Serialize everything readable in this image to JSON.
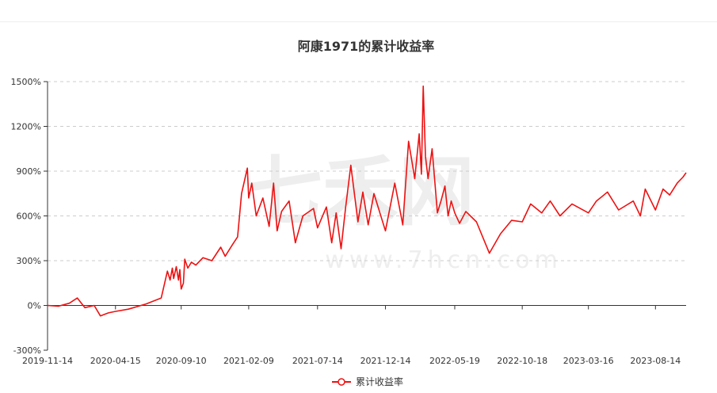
{
  "chart_data": {
    "type": "line",
    "title": "阿康1971的累计收益率",
    "xlabel": "",
    "ylabel": "",
    "x_start": "2019-11-14",
    "x_end": "2023-10-22",
    "x_tick_labels": [
      "2019-11-14",
      "2020-04-15",
      "2020-09-10",
      "2021-02-09",
      "2021-07-14",
      "2021-12-14",
      "2022-05-19",
      "2022-10-18",
      "2023-03-16",
      "2023-08-14"
    ],
    "y_ticks": [
      -300,
      0,
      300,
      600,
      900,
      1200,
      1500
    ],
    "y_tick_labels": [
      "-300%",
      "0%",
      "300%",
      "600%",
      "900%",
      "1200%",
      "1500%"
    ],
    "ylim": [
      -300,
      1500
    ],
    "grid": true,
    "legend_position": "bottom",
    "colors": {
      "line": "#ee1111",
      "grid": "#cccccc",
      "axis": "#333333"
    },
    "watermark": {
      "text": "七禾网",
      "url": "www.7hcn.com"
    },
    "series": [
      {
        "name": "累计收益率",
        "x": [
          "2019-11-14",
          "2019-12-09",
          "2020-01-02",
          "2020-01-20",
          "2020-02-06",
          "2020-02-27",
          "2020-03-12",
          "2020-03-30",
          "2020-04-15",
          "2020-05-14",
          "2020-06-23",
          "2020-07-27",
          "2020-08-10",
          "2020-08-16",
          "2020-08-21",
          "2020-08-24",
          "2020-08-30",
          "2020-09-04",
          "2020-09-07",
          "2020-09-10",
          "2020-09-15",
          "2020-09-18",
          "2020-09-25",
          "2020-10-03",
          "2020-10-13",
          "2020-10-29",
          "2020-11-18",
          "2020-12-08",
          "2020-12-18",
          "2021-01-04",
          "2021-01-15",
          "2021-01-24",
          "2021-02-06",
          "2021-02-09",
          "2021-02-16",
          "2021-02-26",
          "2021-03-13",
          "2021-03-27",
          "2021-04-06",
          "2021-04-14",
          "2021-04-24",
          "2021-05-11",
          "2021-05-25",
          "2021-06-11",
          "2021-07-05",
          "2021-07-14",
          "2021-08-03",
          "2021-08-15",
          "2021-08-25",
          "2021-09-05",
          "2021-09-15",
          "2021-09-27",
          "2021-10-13",
          "2021-10-24",
          "2021-11-05",
          "2021-11-18",
          "2021-12-14",
          "2022-01-04",
          "2022-01-22",
          "2022-02-04",
          "2022-02-18",
          "2022-02-28",
          "2022-03-05",
          "2022-03-09",
          "2022-03-14",
          "2022-03-20",
          "2022-03-29",
          "2022-04-10",
          "2022-04-18",
          "2022-04-27",
          "2022-05-04",
          "2022-05-11",
          "2022-05-19",
          "2022-05-30",
          "2022-06-13",
          "2022-07-07",
          "2022-08-05",
          "2022-08-30",
          "2022-09-10",
          "2022-09-24",
          "2022-10-18",
          "2022-11-06",
          "2022-12-01",
          "2022-12-20",
          "2023-01-11",
          "2023-02-07",
          "2023-03-16",
          "2023-04-03",
          "2023-04-28",
          "2023-05-23",
          "2023-06-25",
          "2023-07-11",
          "2023-07-22",
          "2023-08-14",
          "2023-08-31",
          "2023-09-15",
          "2023-10-02",
          "2023-10-15",
          "2023-10-22"
        ],
        "values": [
          0,
          -5,
          15,
          50,
          -15,
          0,
          -70,
          -50,
          -40,
          -25,
          10,
          50,
          230,
          170,
          250,
          180,
          260,
          170,
          240,
          110,
          150,
          310,
          250,
          290,
          270,
          320,
          300,
          390,
          330,
          410,
          460,
          750,
          920,
          720,
          820,
          600,
          720,
          530,
          820,
          500,
          630,
          700,
          420,
          600,
          650,
          520,
          660,
          420,
          620,
          380,
          650,
          940,
          560,
          760,
          540,
          750,
          500,
          820,
          540,
          1100,
          850,
          1150,
          880,
          1470,
          1000,
          850,
          1050,
          620,
          700,
          800,
          600,
          700,
          620,
          550,
          630,
          560,
          350,
          480,
          520,
          570,
          560,
          680,
          620,
          700,
          600,
          680,
          620,
          700,
          760,
          640,
          700,
          600,
          780,
          640,
          780,
          740,
          820,
          860,
          890
        ]
      }
    ]
  }
}
